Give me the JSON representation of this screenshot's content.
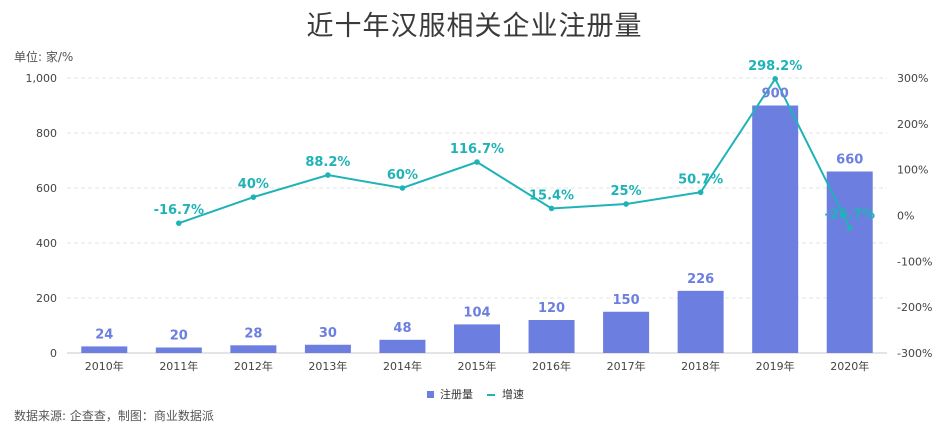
{
  "title": "近十年汉服相关企业注册量",
  "unit_label": "单位: 家/%",
  "source": "数据来源: 企查查，制图：商业数据派",
  "colors": {
    "bar": "#6c7fe0",
    "line": "#1fb3b8",
    "grid": "#e3e3e3"
  },
  "chart_data": {
    "type": "bar",
    "categories": [
      "2010年",
      "2011年",
      "2012年",
      "2013年",
      "2014年",
      "2015年",
      "2016年",
      "2017年",
      "2018年",
      "2019年",
      "2020年"
    ],
    "series": [
      {
        "name": "注册量",
        "type": "bar",
        "axis": "left",
        "values": [
          24,
          20,
          28,
          30,
          48,
          104,
          120,
          150,
          226,
          900,
          660
        ],
        "labels": [
          "24",
          "20",
          "28",
          "30",
          "48",
          "104",
          "120",
          "150",
          "226",
          "900",
          "660"
        ]
      },
      {
        "name": "增速",
        "type": "line",
        "axis": "right",
        "values": [
          null,
          -16.7,
          40,
          88.2,
          60,
          116.7,
          15.4,
          25,
          50.7,
          298.2,
          -26.7
        ],
        "labels": [
          "",
          "-16.7%",
          "40%",
          "88.2%",
          "60%",
          "116.7%",
          "15.4%",
          "25%",
          "50.7%",
          "298.2%",
          "-26.7%"
        ]
      }
    ],
    "y_left": {
      "min": 0,
      "max": 1000,
      "ticks": [
        "0",
        "200",
        "400",
        "600",
        "800",
        "1,000"
      ],
      "tick_values": [
        0,
        200,
        400,
        600,
        800,
        1000
      ]
    },
    "y_right": {
      "min": -300,
      "max": 300,
      "ticks": [
        "-300%",
        "-200%",
        "-100%",
        "0%",
        "100%",
        "200%",
        "300%"
      ],
      "tick_values": [
        -300,
        -200,
        -100,
        0,
        100,
        200,
        300
      ]
    },
    "grid": true,
    "legend_position": "bottom-center"
  }
}
